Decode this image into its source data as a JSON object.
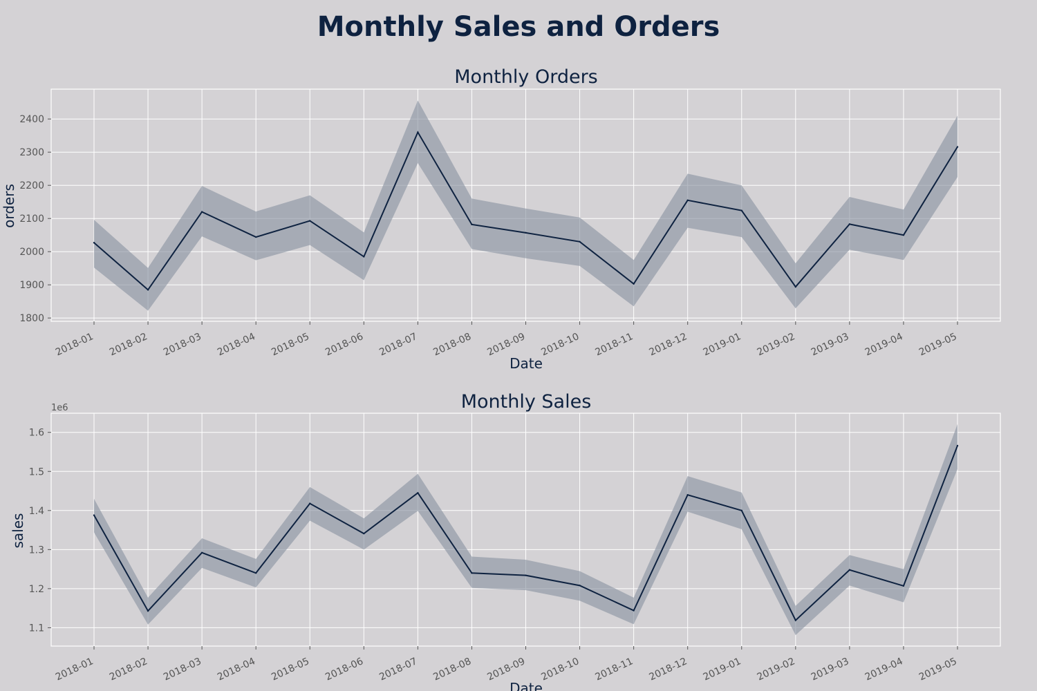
{
  "figure": {
    "title": "Monthly Sales and Orders",
    "colors": {
      "background": "#d4d2d5",
      "line": "#0e2240",
      "band": "#8e97a4",
      "grid": "#ffffff"
    }
  },
  "chart_data": [
    {
      "type": "line",
      "title": "Monthly Orders",
      "xlabel": "Date",
      "ylabel": "orders",
      "y_offset_label": "",
      "grid": true,
      "confidence_band": true,
      "x": [
        "2018-01",
        "2018-02",
        "2018-03",
        "2018-04",
        "2018-05",
        "2018-06",
        "2018-07",
        "2018-08",
        "2018-09",
        "2018-10",
        "2018-11",
        "2018-12",
        "2019-01",
        "2019-02",
        "2019-03",
        "2019-04",
        "2019-05"
      ],
      "series": [
        {
          "values": [
            2027,
            1885,
            2120,
            2044,
            2093,
            1985,
            2360,
            2082,
            2057,
            2030,
            1903,
            2155,
            2124,
            1894,
            2083,
            2050,
            2316
          ],
          "lower": [
            1952,
            1822,
            2046,
            1974,
            2020,
            1914,
            2267,
            2008,
            1980,
            1957,
            1835,
            2072,
            2044,
            1829,
            2006,
            1975,
            2225
          ],
          "upper": [
            2096,
            1951,
            2198,
            2121,
            2170,
            2058,
            2456,
            2160,
            2130,
            2103,
            1975,
            2235,
            2200,
            1965,
            2165,
            2127,
            2410
          ]
        }
      ],
      "ylim": [
        1790,
        2490
      ],
      "yticks": [
        1800,
        1900,
        2000,
        2100,
        2200,
        2300,
        2400
      ]
    },
    {
      "type": "line",
      "title": "Monthly Sales",
      "xlabel": "Date",
      "ylabel": "sales",
      "y_offset_label": "1e6",
      "grid": true,
      "confidence_band": true,
      "x": [
        "2018-01",
        "2018-02",
        "2018-03",
        "2018-04",
        "2018-05",
        "2018-06",
        "2018-07",
        "2018-08",
        "2018-09",
        "2018-10",
        "2018-11",
        "2018-12",
        "2019-01",
        "2019-02",
        "2019-03",
        "2019-04",
        "2019-05"
      ],
      "series": [
        {
          "values": [
            1.388,
            1.143,
            1.292,
            1.24,
            1.418,
            1.341,
            1.445,
            1.24,
            1.234,
            1.208,
            1.144,
            1.44,
            1.4,
            1.119,
            1.248,
            1.207,
            1.566
          ],
          "lower": [
            1.344,
            1.108,
            1.253,
            1.203,
            1.374,
            1.3,
            1.399,
            1.202,
            1.196,
            1.169,
            1.109,
            1.397,
            1.352,
            1.081,
            1.208,
            1.165,
            1.506
          ],
          "upper": [
            1.43,
            1.177,
            1.329,
            1.276,
            1.46,
            1.38,
            1.494,
            1.282,
            1.274,
            1.245,
            1.177,
            1.488,
            1.446,
            1.156,
            1.286,
            1.25,
            1.621
          ]
        }
      ],
      "ylim": [
        1.053,
        1.649
      ],
      "yticks": [
        1.1,
        1.2,
        1.3,
        1.4,
        1.5,
        1.6
      ]
    }
  ]
}
